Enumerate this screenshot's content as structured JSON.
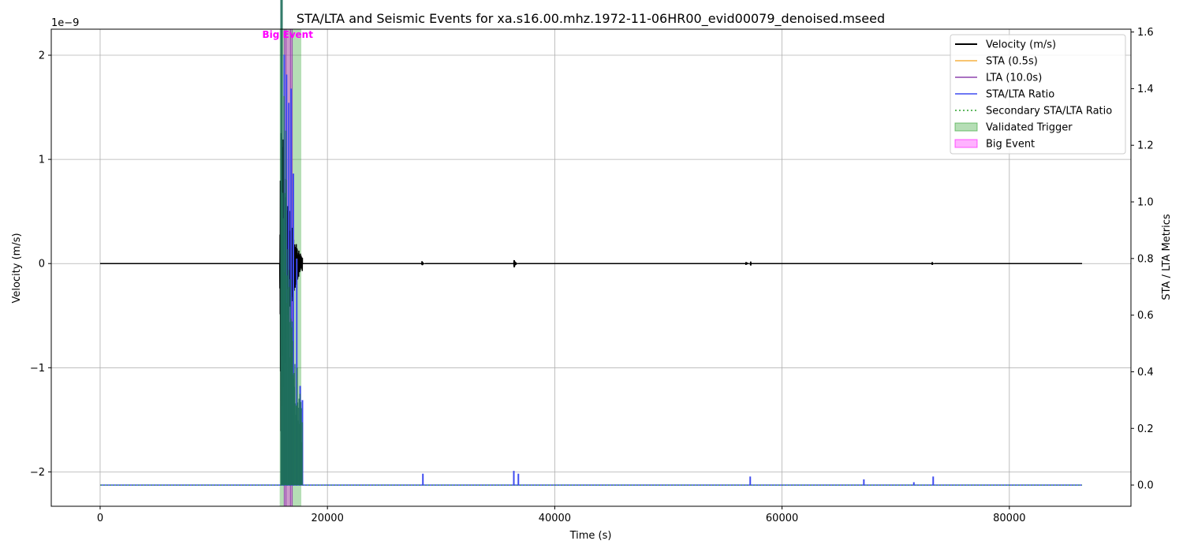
{
  "chart_data": {
    "type": "line",
    "title": "STA/LTA and Seismic Events for xa.s16.00.mhz.1972-11-06HR00_evid00079_denoised.mseed",
    "xlabel": "Time (s)",
    "ylabel_left": "Velocity (m/s)",
    "ylabel_right": "STA / LTA Metrics",
    "left_offset_label": "1e−9",
    "xlim": [
      -4300,
      90700
    ],
    "ylim_left": [
      -2.33,
      2.25
    ],
    "ylim_right": [
      -0.075,
      1.61
    ],
    "x_ticks": [
      0,
      20000,
      40000,
      60000,
      80000
    ],
    "x_tick_labels": [
      "0",
      "20000",
      "40000",
      "60000",
      "80000"
    ],
    "y_left_ticks": [
      -2,
      -1,
      0,
      1,
      2
    ],
    "y_left_tick_labels": [
      "−2",
      "−1",
      "0",
      "1",
      "2"
    ],
    "y_right_ticks": [
      0.0,
      0.2,
      0.4,
      0.6,
      0.8,
      1.0,
      1.2,
      1.4,
      1.6
    ],
    "y_right_tick_labels": [
      "0.0",
      "0.2",
      "0.4",
      "0.6",
      "0.8",
      "1.0",
      "1.2",
      "1.4",
      "1.6"
    ],
    "grid": true,
    "legend_position": "top-right",
    "series": [
      {
        "name": "Velocity (m/s)",
        "color": "#000000",
        "style": "solid",
        "axis": "left",
        "x_range": [
          0,
          86400
        ],
        "bursts": [
          {
            "x_start": 15800,
            "x_end": 17800,
            "peak": 2.05
          },
          {
            "x_start": 28300,
            "x_end": 28600,
            "peak": 0.03
          },
          {
            "x_start": 36400,
            "x_end": 36800,
            "peak": 0.05
          },
          {
            "x_start": 56800,
            "x_end": 57300,
            "peak": 0.02
          },
          {
            "x_start": 73200,
            "x_end": 73400,
            "peak": 0.02
          }
        ]
      },
      {
        "name": "STA (0.5s)",
        "color": "#f5b041",
        "style": "solid",
        "axis": "right"
      },
      {
        "name": "LTA (10.0s)",
        "color": "#8e44ad",
        "style": "solid",
        "axis": "right"
      },
      {
        "name": "STA/LTA Ratio",
        "color": "#3f4cf0",
        "style": "solid",
        "axis": "right",
        "spikes": [
          {
            "x": 16200,
            "y": 1.52
          },
          {
            "x": 16400,
            "y": 1.45
          },
          {
            "x": 16600,
            "y": 1.35
          },
          {
            "x": 16800,
            "y": 1.4
          },
          {
            "x": 17000,
            "y": 1.1
          },
          {
            "x": 17300,
            "y": 0.8
          },
          {
            "x": 17600,
            "y": 0.35
          },
          {
            "x": 17800,
            "y": 0.3
          },
          {
            "x": 28400,
            "y": 0.04
          },
          {
            "x": 36400,
            "y": 0.05
          },
          {
            "x": 36800,
            "y": 0.04
          },
          {
            "x": 57200,
            "y": 0.03
          },
          {
            "x": 67200,
            "y": 0.02
          },
          {
            "x": 71600,
            "y": 0.01
          },
          {
            "x": 73300,
            "y": 0.03
          }
        ]
      },
      {
        "name": "Secondary STA/LTA Ratio",
        "color": "#2ca02c",
        "style": "dotted",
        "axis": "right"
      }
    ],
    "spans": [
      {
        "name": "Validated Trigger",
        "color": "#2ca02c",
        "opacity": 0.35,
        "x_start": 15800,
        "x_end": 17700
      },
      {
        "name": "Big Event",
        "color": "#ff00ff",
        "opacity": 0.3,
        "x_start": 16200,
        "x_end": 16900
      }
    ],
    "annotation": {
      "text": "Big Event",
      "x": 16500,
      "color": "#ff00ff"
    }
  }
}
